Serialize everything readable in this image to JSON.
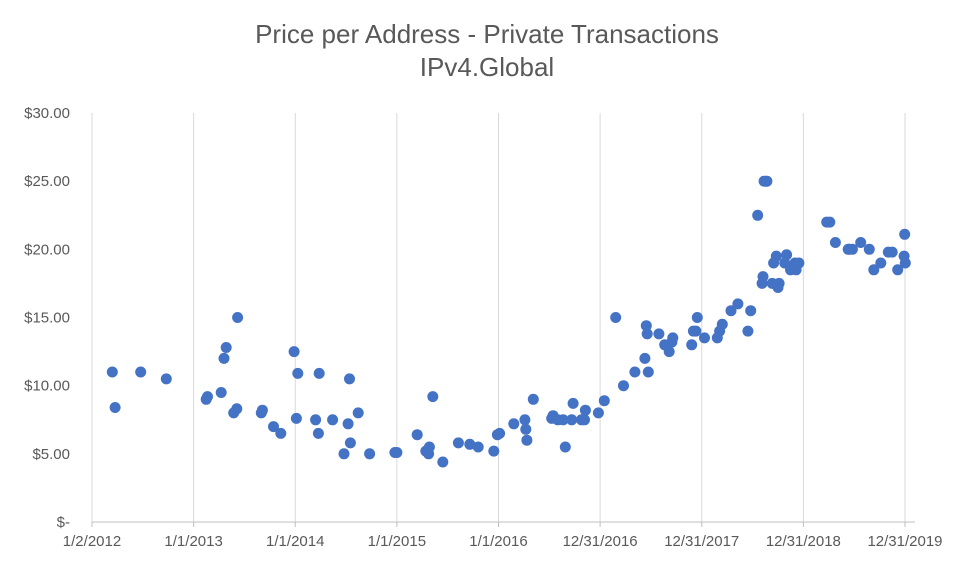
{
  "chart_data": {
    "type": "scatter",
    "title": "Price per Address - Private Transactions",
    "subtitle": "IPv4.Global",
    "xlabel": "",
    "ylabel": "",
    "xlim": [
      "2012-01-02",
      "2020-02-05"
    ],
    "ylim": [
      0,
      30
    ],
    "y_ticks": [
      0,
      5,
      10,
      15,
      20,
      25,
      30
    ],
    "y_tick_labels": [
      "$-",
      "$5.00",
      "$10.00",
      "$15.00",
      "$20.00",
      "$25.00",
      "$30.00"
    ],
    "x_ticks": [
      "2012-01-02",
      "2013-01-01",
      "2014-01-01",
      "2015-01-01",
      "2016-01-01",
      "2016-12-31",
      "2017-12-31",
      "2018-12-31",
      "2019-12-31"
    ],
    "x_tick_labels": [
      "1/2/2012",
      "1/1/2013",
      "1/1/2014",
      "1/1/2015",
      "1/1/2016",
      "12/31/2016",
      "12/31/2017",
      "12/31/2018",
      "12/31/2019"
    ],
    "grid": "vertical",
    "marker_color": "#4472c4",
    "points": [
      [
        "2012-03-15",
        11.0
      ],
      [
        "2012-03-25",
        8.4
      ],
      [
        "2012-06-25",
        11.0
      ],
      [
        "2012-09-25",
        10.5
      ],
      [
        "2013-02-15",
        9.0
      ],
      [
        "2013-02-20",
        9.2
      ],
      [
        "2013-04-10",
        9.5
      ],
      [
        "2013-04-20",
        12.0
      ],
      [
        "2013-04-28",
        12.8
      ],
      [
        "2013-05-25",
        8.0
      ],
      [
        "2013-06-05",
        8.3
      ],
      [
        "2013-06-08",
        15.0
      ],
      [
        "2013-09-01",
        8.0
      ],
      [
        "2013-09-05",
        8.2
      ],
      [
        "2013-10-15",
        7.0
      ],
      [
        "2013-11-10",
        6.5
      ],
      [
        "2013-12-28",
        12.5
      ],
      [
        "2014-01-05",
        7.6
      ],
      [
        "2014-01-10",
        10.9
      ],
      [
        "2014-03-15",
        7.5
      ],
      [
        "2014-03-25",
        6.5
      ],
      [
        "2014-03-28",
        10.9
      ],
      [
        "2014-05-15",
        7.5
      ],
      [
        "2014-06-25",
        5.0
      ],
      [
        "2014-07-10",
        7.2
      ],
      [
        "2014-07-15",
        10.5
      ],
      [
        "2014-07-18",
        5.8
      ],
      [
        "2014-08-15",
        8.0
      ],
      [
        "2014-09-25",
        5.0
      ],
      [
        "2014-12-25",
        5.1
      ],
      [
        "2015-01-01",
        5.1
      ],
      [
        "2015-03-15",
        6.4
      ],
      [
        "2015-04-15",
        5.2
      ],
      [
        "2015-04-25",
        5.0
      ],
      [
        "2015-04-28",
        5.5
      ],
      [
        "2015-05-10",
        9.2
      ],
      [
        "2015-06-15",
        4.4
      ],
      [
        "2015-08-10",
        5.8
      ],
      [
        "2015-09-20",
        5.7
      ],
      [
        "2015-10-20",
        5.5
      ],
      [
        "2015-12-15",
        5.2
      ],
      [
        "2015-12-28",
        6.4
      ],
      [
        "2016-01-05",
        6.5
      ],
      [
        "2016-02-25",
        7.2
      ],
      [
        "2016-04-05",
        7.5
      ],
      [
        "2016-04-08",
        6.8
      ],
      [
        "2016-04-12",
        6.0
      ],
      [
        "2016-05-05",
        9.0
      ],
      [
        "2016-07-10",
        7.6
      ],
      [
        "2016-07-15",
        7.8
      ],
      [
        "2016-08-01",
        7.5
      ],
      [
        "2016-08-20",
        7.5
      ],
      [
        "2016-08-28",
        5.5
      ],
      [
        "2016-09-20",
        7.5
      ],
      [
        "2016-09-25",
        8.7
      ],
      [
        "2016-10-25",
        7.5
      ],
      [
        "2016-11-05",
        7.5
      ],
      [
        "2016-11-08",
        8.2
      ],
      [
        "2016-12-25",
        8.0
      ],
      [
        "2017-01-15",
        8.9
      ],
      [
        "2017-02-25",
        15.0
      ],
      [
        "2017-03-25",
        10.0
      ],
      [
        "2017-05-05",
        11.0
      ],
      [
        "2017-06-10",
        12.0
      ],
      [
        "2017-06-15",
        14.4
      ],
      [
        "2017-06-18",
        13.8
      ],
      [
        "2017-06-22",
        11.0
      ],
      [
        "2017-07-30",
        13.8
      ],
      [
        "2017-08-20",
        13.0
      ],
      [
        "2017-09-05",
        12.5
      ],
      [
        "2017-09-15",
        13.2
      ],
      [
        "2017-09-18",
        13.5
      ],
      [
        "2017-11-25",
        13.0
      ],
      [
        "2017-12-01",
        14.0
      ],
      [
        "2017-12-10",
        14.0
      ],
      [
        "2017-12-15",
        15.0
      ],
      [
        "2018-01-10",
        13.5
      ],
      [
        "2018-02-25",
        13.5
      ],
      [
        "2018-03-05",
        14.0
      ],
      [
        "2018-03-15",
        14.5
      ],
      [
        "2018-04-15",
        15.5
      ],
      [
        "2018-05-10",
        16.0
      ],
      [
        "2018-06-15",
        14.0
      ],
      [
        "2018-06-25",
        15.5
      ],
      [
        "2018-07-20",
        22.5
      ],
      [
        "2018-08-05",
        17.5
      ],
      [
        "2018-08-08",
        18.0
      ],
      [
        "2018-08-12",
        25.0
      ],
      [
        "2018-08-18",
        25.0
      ],
      [
        "2018-08-22",
        25.0
      ],
      [
        "2018-09-10",
        17.5
      ],
      [
        "2018-09-15",
        19.0
      ],
      [
        "2018-09-25",
        19.5
      ],
      [
        "2018-10-01",
        17.2
      ],
      [
        "2018-10-05",
        17.5
      ],
      [
        "2018-10-25",
        19.0
      ],
      [
        "2018-11-01",
        19.6
      ],
      [
        "2018-11-15",
        18.5
      ],
      [
        "2018-12-01",
        19.0
      ],
      [
        "2018-12-05",
        18.5
      ],
      [
        "2018-12-15",
        19.0
      ],
      [
        "2019-03-25",
        22.0
      ],
      [
        "2019-04-05",
        22.0
      ],
      [
        "2019-04-25",
        20.5
      ],
      [
        "2019-06-10",
        20.0
      ],
      [
        "2019-06-15",
        20.0
      ],
      [
        "2019-06-25",
        20.0
      ],
      [
        "2019-07-25",
        20.5
      ],
      [
        "2019-08-25",
        20.0
      ],
      [
        "2019-09-10",
        18.5
      ],
      [
        "2019-10-05",
        19.0
      ],
      [
        "2019-11-01",
        19.8
      ],
      [
        "2019-11-15",
        19.8
      ],
      [
        "2019-12-05",
        18.5
      ],
      [
        "2019-12-28",
        19.5
      ],
      [
        "2019-12-30",
        21.1
      ],
      [
        "2020-01-01",
        19.0
      ]
    ]
  }
}
